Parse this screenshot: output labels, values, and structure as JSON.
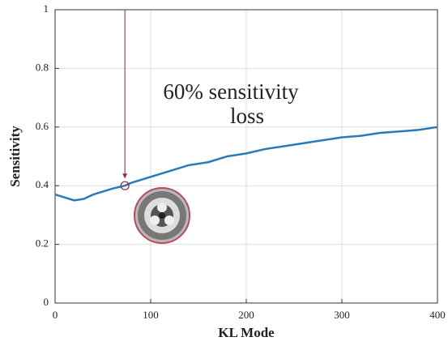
{
  "chart_data": {
    "type": "line",
    "xlabel": "KL Mode",
    "ylabel": "Sensitivity",
    "annotation": [
      "60% sensitivity",
      "loss"
    ],
    "annotation_color": "#8b2a3a",
    "marker": {
      "x": 73,
      "y": 0.4
    },
    "x": [
      0,
      10,
      20,
      30,
      40,
      50,
      60,
      73,
      80,
      100,
      120,
      140,
      160,
      180,
      200,
      220,
      240,
      260,
      280,
      300,
      320,
      340,
      360,
      380,
      400
    ],
    "series": [
      {
        "color": "#2a7ab8",
        "values": [
          0.37,
          0.36,
          0.35,
          0.355,
          0.37,
          0.38,
          0.39,
          0.4,
          0.41,
          0.43,
          0.45,
          0.47,
          0.48,
          0.5,
          0.51,
          0.525,
          0.535,
          0.545,
          0.555,
          0.565,
          0.57,
          0.58,
          0.585,
          0.59,
          0.6
        ]
      }
    ],
    "xlim": [
      0,
      400
    ],
    "xticks": [
      0,
      100,
      200,
      300,
      400
    ],
    "ylim": [
      0,
      1
    ],
    "yticks": [
      0,
      0.2,
      0.4,
      0.6,
      0.8,
      1
    ],
    "grid": true
  }
}
